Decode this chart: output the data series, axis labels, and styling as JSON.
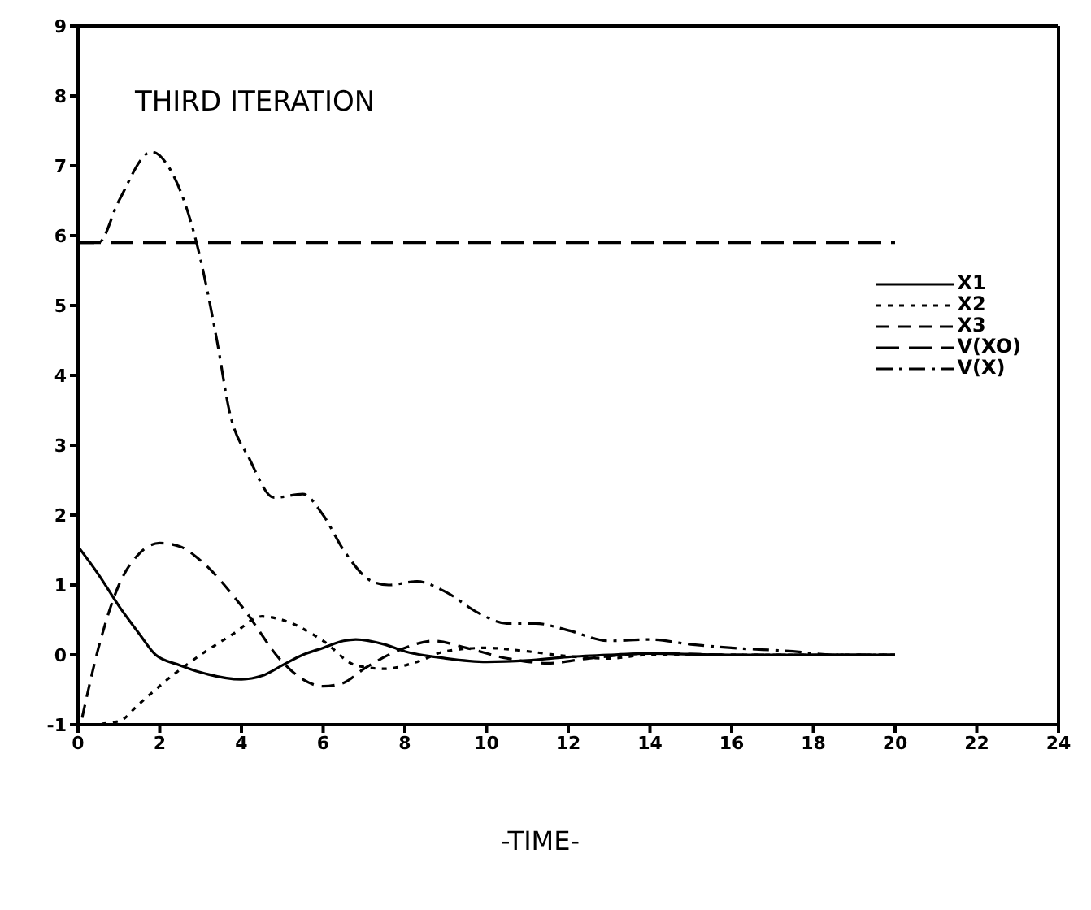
{
  "chart_data": {
    "type": "line",
    "title": "THIRD ITERATION",
    "xlabel": "-TIME-",
    "xlim": [
      0,
      24
    ],
    "xticks": [
      0,
      2,
      4,
      6,
      8,
      10,
      12,
      14,
      16,
      18,
      20,
      22,
      24
    ],
    "ylim": [
      -1,
      9
    ],
    "yticks": [
      -1,
      0,
      1,
      2,
      3,
      4,
      5,
      6,
      7,
      8,
      9
    ],
    "legend": "top right",
    "marker": "none",
    "series": [
      {
        "name": "X1",
        "color": "#000000",
        "line_style": "solid",
        "x": [
          0,
          0.5,
          1,
          1.5,
          1.9,
          2.5,
          3,
          4,
          4.5,
          5,
          5.5,
          6,
          6.5,
          6.8,
          7.5,
          8,
          9,
          10,
          11,
          12,
          13,
          14,
          16,
          18,
          20
        ],
        "values": [
          1.55,
          1.15,
          0.7,
          0.3,
          0,
          -0.15,
          -0.25,
          -0.35,
          -0.3,
          -0.15,
          0,
          0.1,
          0.2,
          0.22,
          0.15,
          0.05,
          -0.05,
          -0.1,
          -0.08,
          -0.03,
          0,
          0.02,
          0,
          0,
          0
        ]
      },
      {
        "name": "X2",
        "color": "#000000",
        "line_style": "dotted",
        "x": [
          0.3,
          1,
          1.5,
          2.3,
          3,
          3.8,
          4.5,
          5,
          6,
          6.8,
          7.5,
          8.3,
          9,
          10,
          11,
          12,
          13,
          14,
          16,
          18,
          20
        ],
        "values": [
          -1,
          -0.95,
          -0.7,
          -0.3,
          0,
          0.3,
          0.55,
          0.5,
          0.2,
          -0.15,
          -0.2,
          -0.1,
          0.05,
          0.1,
          0.05,
          -0.02,
          -0.05,
          0,
          0,
          0,
          0
        ]
      },
      {
        "name": "X3",
        "color": "#000000",
        "line_style": "dashed",
        "x": [
          0.1,
          0.5,
          1,
          1.5,
          2,
          2.5,
          3,
          4,
          5,
          5.5,
          6,
          6.5,
          7,
          8,
          8.7,
          9.5,
          10.5,
          11.5,
          12.5,
          14,
          16,
          18,
          19.8
        ],
        "values": [
          -0.9,
          0.1,
          1,
          1.45,
          1.6,
          1.55,
          1.35,
          0.7,
          -0.1,
          -0.35,
          -0.45,
          -0.4,
          -0.2,
          0.1,
          0.2,
          0.1,
          -0.05,
          -0.12,
          -0.05,
          0.02,
          0,
          0,
          0
        ]
      },
      {
        "name": "V(XO)",
        "color": "#000000",
        "line_style": "longdash",
        "x": [
          0,
          20
        ],
        "values": [
          5.9,
          5.9
        ]
      },
      {
        "name": "V(X)",
        "color": "#000000",
        "line_style": "dashdot",
        "x": [
          0,
          0.5,
          1,
          1.8,
          2.2,
          2.9,
          3.4,
          3.7,
          4.2,
          4.8,
          5.5,
          6,
          6.5,
          7.2,
          7.6,
          8.3,
          9,
          9.8,
          10.5,
          11.2,
          12,
          13,
          14,
          15,
          16,
          17.5,
          18.5,
          20
        ],
        "values": [
          5.9,
          5.9,
          6.5,
          7.2,
          7,
          5.9,
          4.5,
          3.5,
          2.8,
          2.25,
          2.3,
          2,
          1.5,
          1.05,
          1,
          1.05,
          0.9,
          0.6,
          0.45,
          0.45,
          0.35,
          0.2,
          0.22,
          0.15,
          0.1,
          0.05,
          0,
          0
        ]
      }
    ]
  }
}
